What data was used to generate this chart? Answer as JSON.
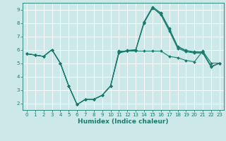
{
  "xlabel": "Humidex (Indice chaleur)",
  "bg_color": "#cce8e8",
  "line_color": "#1a7a6e",
  "grid_color": "#ffffff",
  "xlim": [
    -0.5,
    23.5
  ],
  "ylim": [
    1.5,
    9.5
  ],
  "yticks": [
    2,
    3,
    4,
    5,
    6,
    7,
    8,
    9
  ],
  "xticks": [
    0,
    1,
    2,
    3,
    4,
    5,
    6,
    7,
    8,
    9,
    10,
    11,
    12,
    13,
    14,
    15,
    16,
    17,
    18,
    19,
    20,
    21,
    22,
    23
  ],
  "series": [
    {
      "x": [
        0,
        1,
        2,
        3,
        4,
        5,
        6,
        7,
        8,
        9,
        10,
        11,
        12,
        13,
        14,
        15,
        16,
        17,
        18,
        19,
        20,
        21,
        22,
        23
      ],
      "y": [
        5.7,
        5.6,
        5.5,
        6.0,
        5.0,
        3.3,
        1.9,
        2.3,
        2.3,
        2.6,
        3.3,
        5.9,
        5.9,
        5.9,
        5.9,
        5.9,
        5.9,
        5.5,
        5.4,
        5.2,
        5.1,
        5.9,
        5.0,
        5.0
      ]
    },
    {
      "x": [
        0,
        1,
        2,
        3,
        4,
        5,
        6,
        7,
        8,
        9,
        10,
        11,
        12,
        13,
        14,
        15,
        16,
        17,
        18,
        19,
        20,
        21,
        22,
        23
      ],
      "y": [
        5.7,
        5.6,
        5.5,
        6.0,
        5.0,
        3.3,
        1.9,
        2.3,
        2.3,
        2.6,
        3.3,
        5.85,
        5.9,
        5.95,
        8.0,
        9.15,
        8.6,
        7.4,
        6.1,
        5.85,
        5.75,
        5.75,
        4.7,
        5.0
      ]
    },
    {
      "x": [
        0,
        1,
        2,
        3,
        4,
        5,
        6,
        7,
        8,
        9,
        10,
        11,
        12,
        13,
        14,
        15,
        16,
        17,
        18,
        19,
        20,
        21,
        22,
        23
      ],
      "y": [
        5.7,
        5.6,
        5.5,
        6.0,
        5.0,
        3.3,
        1.9,
        2.3,
        2.3,
        2.6,
        3.3,
        5.8,
        5.95,
        6.0,
        8.1,
        9.2,
        8.75,
        7.6,
        6.25,
        5.95,
        5.85,
        5.85,
        4.75,
        5.0
      ]
    },
    {
      "x": [
        0,
        1,
        2,
        3,
        4,
        5,
        6,
        7,
        8,
        9,
        10,
        11,
        12,
        13,
        14,
        15,
        16,
        17,
        18,
        19,
        20,
        21,
        22,
        23
      ],
      "y": [
        5.7,
        5.6,
        5.5,
        6.0,
        5.0,
        3.3,
        1.9,
        2.3,
        2.3,
        2.6,
        3.3,
        5.75,
        5.9,
        6.0,
        8.05,
        9.1,
        8.7,
        7.5,
        6.2,
        5.9,
        5.8,
        5.8,
        4.75,
        5.0
      ]
    }
  ],
  "tick_fontsize": 5,
  "label_fontsize": 6.5,
  "marker_size": 2.0,
  "linewidth": 0.8
}
